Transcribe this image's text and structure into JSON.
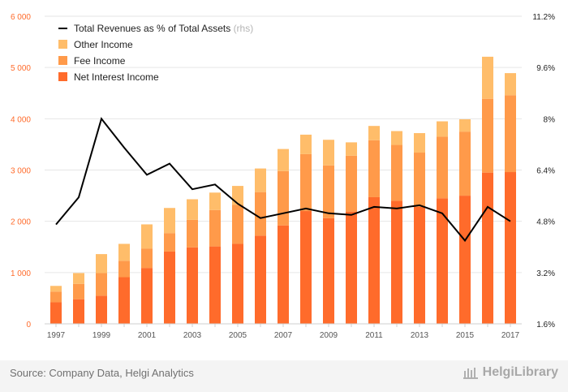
{
  "chart_data": {
    "type": "bar",
    "stacked": true,
    "categories": [
      "1997",
      "1998",
      "1999",
      "2000",
      "2001",
      "2002",
      "2003",
      "2004",
      "2005",
      "2006",
      "2007",
      "2008",
      "2009",
      "2010",
      "2011",
      "2012",
      "2013",
      "2014",
      "2015",
      "2016",
      "2017"
    ],
    "series": [
      {
        "name": "Net Interest Income",
        "color": "#ff6b2b",
        "values": [
          420,
          480,
          550,
          910,
          1090,
          1410,
          1490,
          1510,
          1560,
          1720,
          1920,
          2200,
          2060,
          2190,
          2470,
          2400,
          2280,
          2450,
          2500,
          2950,
          2960
        ]
      },
      {
        "name": "Fee Income",
        "color": "#ff9a4a",
        "values": [
          210,
          300,
          440,
          320,
          380,
          360,
          540,
          710,
          760,
          850,
          1060,
          1110,
          1030,
          1090,
          1110,
          1090,
          1060,
          1200,
          1250,
          1440,
          1500
        ]
      },
      {
        "name": "Other Income",
        "color": "#ffbd6a",
        "values": [
          110,
          210,
          370,
          330,
          470,
          490,
          400,
          340,
          370,
          460,
          430,
          380,
          500,
          260,
          280,
          270,
          380,
          300,
          240,
          820,
          430
        ]
      }
    ],
    "line": {
      "name": "Total Revenues as % of Total Assets",
      "axis_note": "(rhs)",
      "color": "#000000",
      "values": [
        4.7,
        5.55,
        8.0,
        7.1,
        6.25,
        6.6,
        5.8,
        5.95,
        5.35,
        4.9,
        5.05,
        5.2,
        5.05,
        5.0,
        5.25,
        5.2,
        5.3,
        5.05,
        4.2,
        5.25,
        4.8
      ]
    },
    "y_left": {
      "ticks": [
        0,
        1000,
        2000,
        3000,
        4000,
        5000,
        6000
      ],
      "tick_labels": [
        "0",
        "1 000",
        "2 000",
        "3 000",
        "4 000",
        "5 000",
        "6 000"
      ],
      "range": [
        0,
        6000
      ],
      "color": "#ff6b2b"
    },
    "y_right": {
      "ticks": [
        1.6,
        3.2,
        4.8,
        6.4,
        8.0,
        9.6,
        11.2
      ],
      "tick_labels": [
        "1.6%",
        "3.2%",
        "4.8%",
        "6.4%",
        "8%",
        "9.6%",
        "11.2%"
      ],
      "range": [
        1.6,
        11.2
      ]
    },
    "x_tick_labels": [
      "1997",
      "",
      "1999",
      "",
      "2001",
      "",
      "2003",
      "",
      "2005",
      "",
      "2007",
      "",
      "2009",
      "",
      "2011",
      "",
      "2013",
      "",
      "2015",
      "",
      "2017"
    ],
    "grid": true,
    "legend_position": "top-left"
  },
  "footer": {
    "source": "Source: Company Data, Helgi Analytics",
    "brand": "HelgiLibrary"
  }
}
